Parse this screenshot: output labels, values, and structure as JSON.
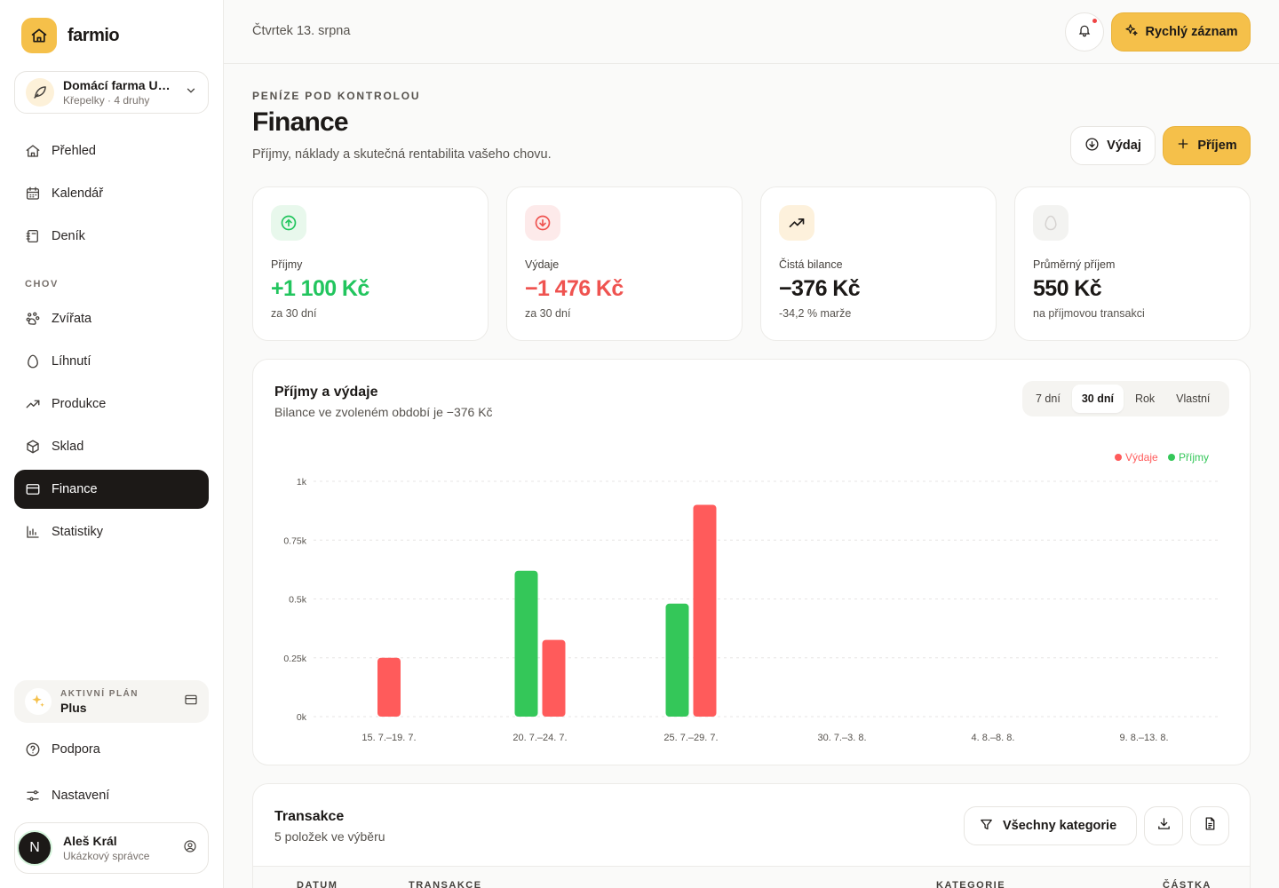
{
  "brand": {
    "name": "farmio",
    "icon": "home-icon"
  },
  "farm": {
    "name": "Domácí farma U…",
    "sub": "Křepelky · 4 druhy"
  },
  "nav": {
    "items": [
      {
        "label": "Přehled",
        "icon": "home-icon"
      },
      {
        "label": "Kalendář",
        "icon": "calendar-icon"
      },
      {
        "label": "Deník",
        "icon": "notebook-icon"
      }
    ],
    "section_label": "CHOV",
    "chov_items": [
      {
        "label": "Zvířata",
        "icon": "paw-icon"
      },
      {
        "label": "Líhnutí",
        "icon": "egg-icon"
      },
      {
        "label": "Produkce",
        "icon": "trend-icon"
      },
      {
        "label": "Sklad",
        "icon": "box-icon"
      },
      {
        "label": "Finance",
        "icon": "wallet-icon",
        "active": true
      },
      {
        "label": "Statistiky",
        "icon": "bar-chart-icon"
      }
    ]
  },
  "plan": {
    "label": "AKTIVNÍ PLÁN",
    "name": "Plus"
  },
  "footer_nav": [
    {
      "label": "Podpora",
      "icon": "help-icon"
    },
    {
      "label": "Nastavení",
      "icon": "settings-icon"
    }
  ],
  "user": {
    "initial": "N",
    "name": "Aleš Král",
    "role": "Ukázkový správce"
  },
  "topbar": {
    "date": "Čtvrtek 13. srpna",
    "quick_label": "Rychlý záznam"
  },
  "header": {
    "eyebrow": "PENÍZE POD KONTROLOU",
    "title": "Finance",
    "subtitle": "Příjmy, náklady a skutečná rentabilita vašeho chovu.",
    "expense_label": "Výdaj",
    "income_label": "Příjem"
  },
  "stats": [
    {
      "label": "Příjmy",
      "value": "+1 100 Kč",
      "note": "za 30 dní",
      "color": "#22c55e",
      "icon": "arrow-up-circle-icon"
    },
    {
      "label": "Výdaje",
      "value": "−1 476 Kč",
      "note": "za 30 dní",
      "color": "#ef5350",
      "icon": "arrow-down-circle-icon"
    },
    {
      "label": "Čistá bilance",
      "value": "−376 Kč",
      "note": "-34,2 % marže",
      "color": "#1c1917",
      "icon": "trend-up-icon"
    },
    {
      "label": "Průměrný příjem",
      "value": "550 Kč",
      "note": "na příjmovou transakci",
      "color": "#1c1917",
      "icon": "egg-icon"
    }
  ],
  "chart": {
    "title": "Příjmy a výdaje",
    "subtitle": "Bilance ve zvoleném období je −376 Kč",
    "ranges": [
      "7 dní",
      "30 dní",
      "Rok",
      "Vlastní"
    ],
    "active_range": "30 dní"
  },
  "chart_data": {
    "type": "bar",
    "categories": [
      "15. 7.–19. 7.",
      "20. 7.–24. 7.",
      "25. 7.–29. 7.",
      "30. 7.–3. 8.",
      "4. 8.–8. 8.",
      "9. 8.–13. 8."
    ],
    "series": [
      {
        "name": "Příjmy",
        "color": "#34c759",
        "values": [
          0,
          620,
          480,
          0,
          0,
          0
        ]
      },
      {
        "name": "Výdaje",
        "color": "#ff5b5b",
        "values": [
          250,
          326,
          900,
          0,
          0,
          0
        ]
      }
    ],
    "legend_order": [
      "Výdaje",
      "Příjmy"
    ],
    "ylim": [
      0,
      1000
    ],
    "yticks": [
      0,
      250,
      500,
      750,
      1000
    ],
    "ytick_labels": [
      "0k",
      "0.25k",
      "0.5k",
      "0.75k",
      "1k"
    ],
    "grid": true,
    "legend": "top-right"
  },
  "transactions": {
    "title": "Transakce",
    "subtitle": "5 položek ve výběru",
    "filter_label": "Všechny kategorie",
    "columns": [
      "DATUM",
      "TRANSAKCE",
      "KATEGORIE",
      "ČÁSTKA"
    ]
  }
}
